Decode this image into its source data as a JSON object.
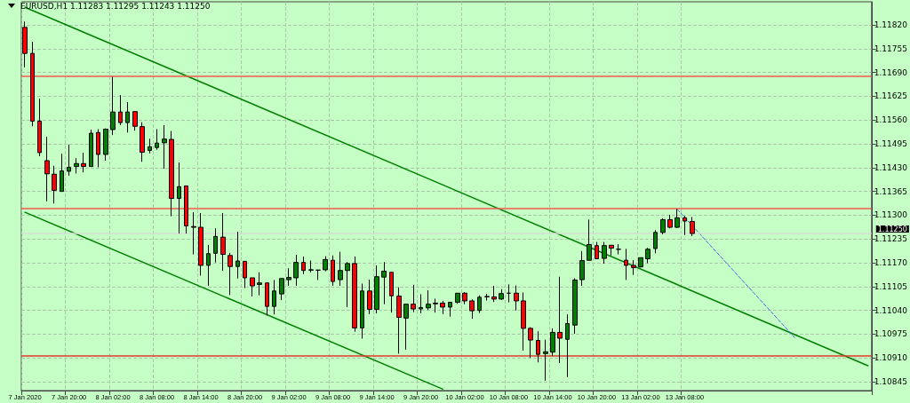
{
  "chart_data": {
    "type": "candlestick",
    "title": "EURUSD,H1 1.11283 1.11295 1.11243 1.11250",
    "categories": [
      "7 Jan 2020",
      null,
      null,
      null,
      null,
      null,
      "7 Jan 20:00",
      null,
      null,
      null,
      null,
      null,
      "8 Jan 02:00",
      null,
      null,
      null,
      null,
      null,
      "8 Jan 08:00",
      null,
      null,
      null,
      null,
      null,
      "8 Jan 14:00",
      null,
      null,
      null,
      null,
      null,
      "8 Jan 20:00",
      null,
      null,
      null,
      null,
      null,
      "9 Jan 02:00",
      null,
      null,
      null,
      null,
      null,
      "9 Jan 08:00",
      null,
      null,
      null,
      null,
      null,
      "9 Jan 14:00",
      null,
      null,
      null,
      null,
      null,
      "9 Jan 20:00",
      null,
      null,
      null,
      null,
      null,
      "10 Jan 02:00",
      null,
      null,
      null,
      null,
      null,
      "10 Jan 08:00",
      null,
      null,
      null,
      null,
      null,
      "10 Jan 14:00",
      null,
      null,
      null,
      null,
      null,
      "10 Jan 20:00",
      null,
      null,
      null,
      null,
      null,
      "13 Jan 02:00",
      null,
      null,
      null,
      null,
      null,
      "13 Jan 08:00",
      null,
      null,
      null,
      null,
      null,
      null,
      null,
      null,
      null,
      null,
      null,
      null,
      null,
      null,
      null,
      null,
      null,
      null,
      null,
      null,
      null,
      null,
      null,
      null,
      null
    ],
    "series": [
      {
        "type": "candlestick",
        "colors": [
          "#ff0000",
          "#ff0000",
          "#ff0000",
          "#ff0000",
          "#ff0000",
          "#008000",
          "#008000",
          "#008000",
          "#ff0000",
          "#008000",
          "#ff0000",
          "#008000",
          "#008000",
          "#ff0000",
          "#008000",
          "#ff0000",
          "#ff0000",
          "#008000",
          "#008000",
          "#008000",
          "#ff0000",
          "#008000",
          "#ff0000",
          "#ff0000",
          "#ff0000",
          "#008000",
          "#008000",
          "#ff0000",
          "#ff0000",
          "#008000",
          "#ff0000",
          "#ff0000",
          "#008000",
          "#ff0000",
          "#008000",
          "#008000",
          "#008000",
          "#008000",
          "#ff0000",
          "#008000",
          "#000000",
          "#008000",
          "#ff0000",
          "#008000",
          "#008000",
          "#ff0000",
          "#008000",
          "#ff0000",
          "#008000",
          "#008000",
          "#ff0000",
          "#ff0000",
          "#008000",
          "#ff0000",
          "#008000",
          "#008000",
          "#008000",
          "#ff0000",
          "#008000",
          "#008000",
          "#ff0000",
          "#ff0000",
          "#008000",
          "#ff0000",
          "#ff0000",
          "#008000",
          "#000000",
          "#ff0000",
          "#ff0000",
          "#ff0000",
          "#ff0000",
          "#008000",
          "#008000",
          "#ff0000",
          "#008000",
          "#008000",
          "#008000",
          "#008000",
          "#ff0000",
          "#008000",
          "#ff0000",
          "#000000",
          "#ff0000",
          "#ff0000",
          "#008000",
          "#008000",
          "#008000",
          "#008000",
          "#ff0000",
          "#008000",
          "#ff0000",
          "#ff0000",
          null,
          null,
          null,
          null,
          null,
          null,
          null,
          null,
          null,
          null,
          null,
          null,
          null,
          null,
          null,
          null,
          null,
          null,
          null,
          null,
          null,
          null,
          null,
          null
        ],
        "ohlc": [
          [
            1.11813,
            1.11829,
            1.11704,
            1.11742
          ],
          [
            1.11742,
            1.11774,
            1.11543,
            1.11557
          ],
          [
            1.11557,
            1.11618,
            1.11461,
            1.11471
          ],
          [
            1.11449,
            1.11514,
            1.11338,
            1.11413
          ],
          [
            1.11412,
            1.11435,
            1.11332,
            1.11368
          ],
          [
            1.11365,
            1.11468,
            1.11365,
            1.11421
          ],
          [
            1.1142,
            1.11493,
            1.11408,
            1.11431
          ],
          [
            1.11433,
            1.11456,
            1.11414,
            1.11441
          ],
          [
            1.11441,
            1.11471,
            1.11417,
            1.11433
          ],
          [
            1.11433,
            1.11534,
            1.11433,
            1.11524
          ],
          [
            1.11526,
            1.11535,
            1.11431,
            1.11466
          ],
          [
            1.11466,
            1.11537,
            1.11449,
            1.11535
          ],
          [
            1.11534,
            1.11678,
            1.11519,
            1.11582
          ],
          [
            1.11582,
            1.11628,
            1.11546,
            1.11553
          ],
          [
            1.11553,
            1.11609,
            1.11526,
            1.11582
          ],
          [
            1.11583,
            1.11584,
            1.11531,
            1.11543
          ],
          [
            1.11542,
            1.11554,
            1.11446,
            1.11472
          ],
          [
            1.11477,
            1.11509,
            1.11469,
            1.11487
          ],
          [
            1.11485,
            1.11535,
            1.11479,
            1.11497
          ],
          [
            1.11498,
            1.11546,
            1.11427,
            1.11508
          ],
          [
            1.11507,
            1.1153,
            1.11297,
            1.11346
          ],
          [
            1.11346,
            1.11444,
            1.1125,
            1.11378
          ],
          [
            1.1138,
            1.1138,
            1.1125,
            1.11271
          ],
          [
            1.11269,
            1.11308,
            1.11193,
            1.11267
          ],
          [
            1.11267,
            1.11306,
            1.11135,
            1.11163
          ],
          [
            1.11163,
            1.11219,
            1.11107,
            1.11195
          ],
          [
            1.11196,
            1.11264,
            1.11171,
            1.11242
          ],
          [
            1.1124,
            1.11306,
            1.11148,
            1.11193
          ],
          [
            1.1119,
            1.11197,
            1.11082,
            1.1116
          ],
          [
            1.1116,
            1.11255,
            1.11127,
            1.11175
          ],
          [
            1.11174,
            1.11174,
            1.11101,
            1.11129
          ],
          [
            1.11129,
            1.11129,
            1.11078,
            1.11107
          ],
          [
            1.11111,
            1.11144,
            1.11081,
            1.11115
          ],
          [
            1.11115,
            1.11115,
            1.11026,
            1.11051
          ],
          [
            1.11051,
            1.11123,
            1.11029,
            1.11093
          ],
          [
            1.11085,
            1.11127,
            1.11068,
            1.11127
          ],
          [
            1.11124,
            1.11155,
            1.11107,
            1.1113
          ],
          [
            1.11129,
            1.11192,
            1.11107,
            1.11171
          ],
          [
            1.11171,
            1.11187,
            1.11139,
            1.11149
          ],
          [
            1.1115,
            1.11176,
            1.11144,
            1.11151
          ],
          [
            1.1115,
            1.1115,
            1.11123,
            1.1115
          ],
          [
            1.11151,
            1.11188,
            1.11147,
            1.11179
          ],
          [
            1.11177,
            1.1119,
            1.11107,
            1.11119
          ],
          [
            1.11124,
            1.112,
            1.11107,
            1.11149
          ],
          [
            1.11149,
            1.11172,
            1.11049,
            1.11168
          ],
          [
            1.11168,
            1.11187,
            1.10982,
            1.10992
          ],
          [
            1.10992,
            1.11113,
            1.10963,
            1.11093
          ],
          [
            1.11093,
            1.11124,
            1.1103,
            1.11043
          ],
          [
            1.11043,
            1.11163,
            1.11032,
            1.11132
          ],
          [
            1.11131,
            1.11172,
            1.11057,
            1.11147
          ],
          [
            1.11144,
            1.11144,
            1.11034,
            1.1108
          ],
          [
            1.11079,
            1.11103,
            1.10922,
            1.11021
          ],
          [
            1.11019,
            1.11057,
            1.10933,
            1.11057
          ],
          [
            1.11057,
            1.1111,
            1.11035,
            1.11044
          ],
          [
            1.11044,
            1.11084,
            1.11032,
            1.11048
          ],
          [
            1.11047,
            1.11095,
            1.11041,
            1.11057
          ],
          [
            1.11058,
            1.11072,
            1.11034,
            1.1106
          ],
          [
            1.1106,
            1.11066,
            1.1103,
            1.11049
          ],
          [
            1.11049,
            1.11062,
            1.11023,
            1.11062
          ],
          [
            1.11062,
            1.11087,
            1.11058,
            1.11087
          ],
          [
            1.11087,
            1.1109,
            1.11057,
            1.11066
          ],
          [
            1.11066,
            1.1107,
            1.11017,
            1.11039
          ],
          [
            1.1104,
            1.11081,
            1.11033,
            1.11076
          ],
          [
            1.11078,
            1.11085,
            1.11067,
            1.11077
          ],
          [
            1.11077,
            1.11107,
            1.11063,
            1.11071
          ],
          [
            1.11071,
            1.11098,
            1.11069,
            1.11086
          ],
          [
            1.11087,
            1.11111,
            1.11062,
            1.11087
          ],
          [
            1.11087,
            1.11108,
            1.1104,
            1.11066
          ],
          [
            1.11066,
            1.11089,
            1.1093,
            1.10991
          ],
          [
            1.10991,
            1.10994,
            1.1091,
            1.10959
          ],
          [
            1.10958,
            1.10983,
            1.10898,
            1.1092
          ],
          [
            1.10922,
            1.1096,
            1.10848,
            1.10927
          ],
          [
            1.10926,
            1.10991,
            1.10916,
            1.1098
          ],
          [
            1.1098,
            1.11132,
            1.10896,
            1.10964
          ],
          [
            1.10961,
            1.11029,
            1.10858,
            1.11004
          ],
          [
            1.11,
            1.11128,
            1.10976,
            1.11123
          ],
          [
            1.11124,
            1.11202,
            1.11107,
            1.11176
          ],
          [
            1.11177,
            1.11288,
            1.11177,
            1.1122
          ],
          [
            1.11217,
            1.11227,
            1.11181,
            1.11181
          ],
          [
            1.11182,
            1.11227,
            1.11168,
            1.11217
          ],
          [
            1.11218,
            1.11218,
            1.1119,
            1.1121
          ],
          [
            1.11207,
            1.11221,
            1.11193,
            1.11207
          ],
          [
            1.11177,
            1.11208,
            1.11123,
            1.11163
          ],
          [
            1.11163,
            1.11177,
            1.11137,
            1.11157
          ],
          [
            1.11159,
            1.11184,
            1.11157,
            1.11184
          ],
          [
            1.11181,
            1.11211,
            1.11169,
            1.11207
          ],
          [
            1.11209,
            1.11259,
            1.11196,
            1.11253
          ],
          [
            1.11253,
            1.11292,
            1.11248,
            1.11288
          ],
          [
            1.11288,
            1.11301,
            1.11264,
            1.11267
          ],
          [
            1.11267,
            1.11317,
            1.11265,
            1.11293
          ],
          [
            1.11293,
            1.11298,
            1.11246,
            1.11284
          ],
          [
            1.11283,
            1.11295,
            1.11243,
            1.1125
          ],
          null,
          null,
          null,
          null,
          null,
          null,
          null,
          null,
          null,
          null,
          null,
          null,
          null,
          null,
          null,
          null,
          null,
          null,
          null,
          null,
          null,
          null,
          null,
          null
        ]
      },
      {
        "type": "line",
        "color": "#008000",
        "values": [
          1.11868,
          null,
          null,
          null,
          null,
          null,
          null,
          null,
          null,
          null,
          null,
          null,
          null,
          null,
          null,
          null,
          null,
          null,
          null,
          null,
          null,
          null,
          null,
          null,
          null,
          null,
          null,
          null,
          null,
          null,
          null,
          null,
          null,
          null,
          null,
          null,
          null,
          null,
          null,
          null,
          null,
          null,
          null,
          null,
          null,
          null,
          null,
          null,
          null,
          null,
          null,
          null,
          null,
          null,
          null,
          null,
          null,
          null,
          null,
          null,
          null,
          null,
          null,
          null,
          null,
          null,
          null,
          null,
          null,
          null,
          null,
          null,
          null,
          null,
          null,
          null,
          null,
          null,
          null,
          null,
          null,
          null,
          null,
          null,
          null,
          null,
          null,
          null,
          null,
          null,
          null,
          null,
          null,
          null,
          null,
          null,
          null,
          null,
          null,
          null,
          null,
          null,
          null,
          null,
          null,
          null,
          null,
          null,
          null,
          null,
          null,
          null,
          null,
          null,
          null,
          1.10889
        ]
      },
      {
        "type": "line",
        "color": "#008000",
        "values": [
          1.11308,
          null,
          null,
          null,
          null,
          null,
          null,
          null,
          null,
          null,
          null,
          null,
          null,
          null,
          null,
          null,
          null,
          null,
          null,
          null,
          null,
          null,
          null,
          null,
          null,
          null,
          null,
          null,
          null,
          null,
          null,
          null,
          null,
          null,
          null,
          null,
          null,
          null,
          null,
          null,
          null,
          null,
          null,
          null,
          null,
          null,
          null,
          null,
          null,
          null,
          null,
          null,
          null,
          null,
          null,
          null,
          null,
          1.10825,
          null,
          null,
          null,
          null,
          null,
          null,
          null,
          null,
          null,
          null,
          null,
          null,
          null,
          null,
          null,
          null,
          null,
          null,
          null,
          null,
          null,
          null,
          null,
          null,
          null,
          null,
          null,
          null,
          null,
          null,
          null,
          null,
          null,
          null,
          null,
          null,
          null,
          null,
          null,
          null,
          null,
          null,
          null,
          null,
          null,
          null,
          null,
          null,
          null,
          null,
          null,
          null,
          null,
          null,
          null,
          null,
          null,
          null
        ]
      },
      {
        "type": "line",
        "color": "#4169e1",
        "line_style": "dashed",
        "values": [
          null,
          null,
          null,
          null,
          null,
          null,
          null,
          null,
          null,
          null,
          null,
          null,
          null,
          null,
          null,
          null,
          null,
          null,
          null,
          null,
          null,
          null,
          null,
          null,
          null,
          null,
          null,
          null,
          null,
          null,
          null,
          null,
          null,
          null,
          null,
          null,
          null,
          null,
          null,
          null,
          null,
          null,
          null,
          null,
          null,
          null,
          null,
          null,
          null,
          null,
          null,
          null,
          null,
          null,
          null,
          null,
          null,
          null,
          null,
          null,
          null,
          null,
          null,
          null,
          null,
          null,
          null,
          null,
          null,
          null,
          null,
          null,
          null,
          null,
          null,
          null,
          null,
          null,
          null,
          null,
          null,
          null,
          null,
          null,
          null,
          null,
          null,
          null,
          null,
          1.11316,
          null,
          null,
          null,
          null,
          null,
          null,
          null,
          null,
          null,
          null,
          null,
          null,
          null,
          null,
          null,
          1.10966,
          null,
          null,
          null,
          null,
          null,
          null,
          null,
          null,
          null,
          null
        ]
      }
    ],
    "ylim": [
      1.10821,
      1.11883
    ],
    "yticks": [
      {
        "value": 1.10845,
        "label": "1.10845"
      },
      {
        "value": 1.1091,
        "label": "1.10910"
      },
      {
        "value": 1.10975,
        "label": "1.10975"
      },
      {
        "value": 1.1104,
        "label": "1.11040"
      },
      {
        "value": 1.11105,
        "label": "1.11105"
      },
      {
        "value": 1.1117,
        "label": "1.11170"
      },
      {
        "value": 1.11235,
        "label": "1.11235"
      },
      {
        "value": 1.113,
        "label": "1.11300"
      },
      {
        "value": 1.11365,
        "label": "1.11365"
      },
      {
        "value": 1.1143,
        "label": "1.11430"
      },
      {
        "value": 1.11495,
        "label": "1.11495"
      },
      {
        "value": 1.1156,
        "label": "1.11560"
      },
      {
        "value": 1.11625,
        "label": "1.11625"
      },
      {
        "value": 1.1169,
        "label": "1.11690"
      },
      {
        "value": 1.11755,
        "label": "1.11755"
      },
      {
        "value": 1.1182,
        "label": "1.11820"
      }
    ],
    "ref_lines": [
      {
        "axis": "y",
        "value": 1.11681,
        "color": "#f05a4a"
      },
      {
        "axis": "y",
        "value": 1.11318,
        "color": "#f05a4a"
      },
      {
        "axis": "y",
        "value": 1.10917,
        "color": "#e03a2a"
      },
      {
        "axis": "y",
        "value": 1.1125,
        "color": "#d4dcd4",
        "label": "1.11250"
      }
    ],
    "grid": true
  }
}
